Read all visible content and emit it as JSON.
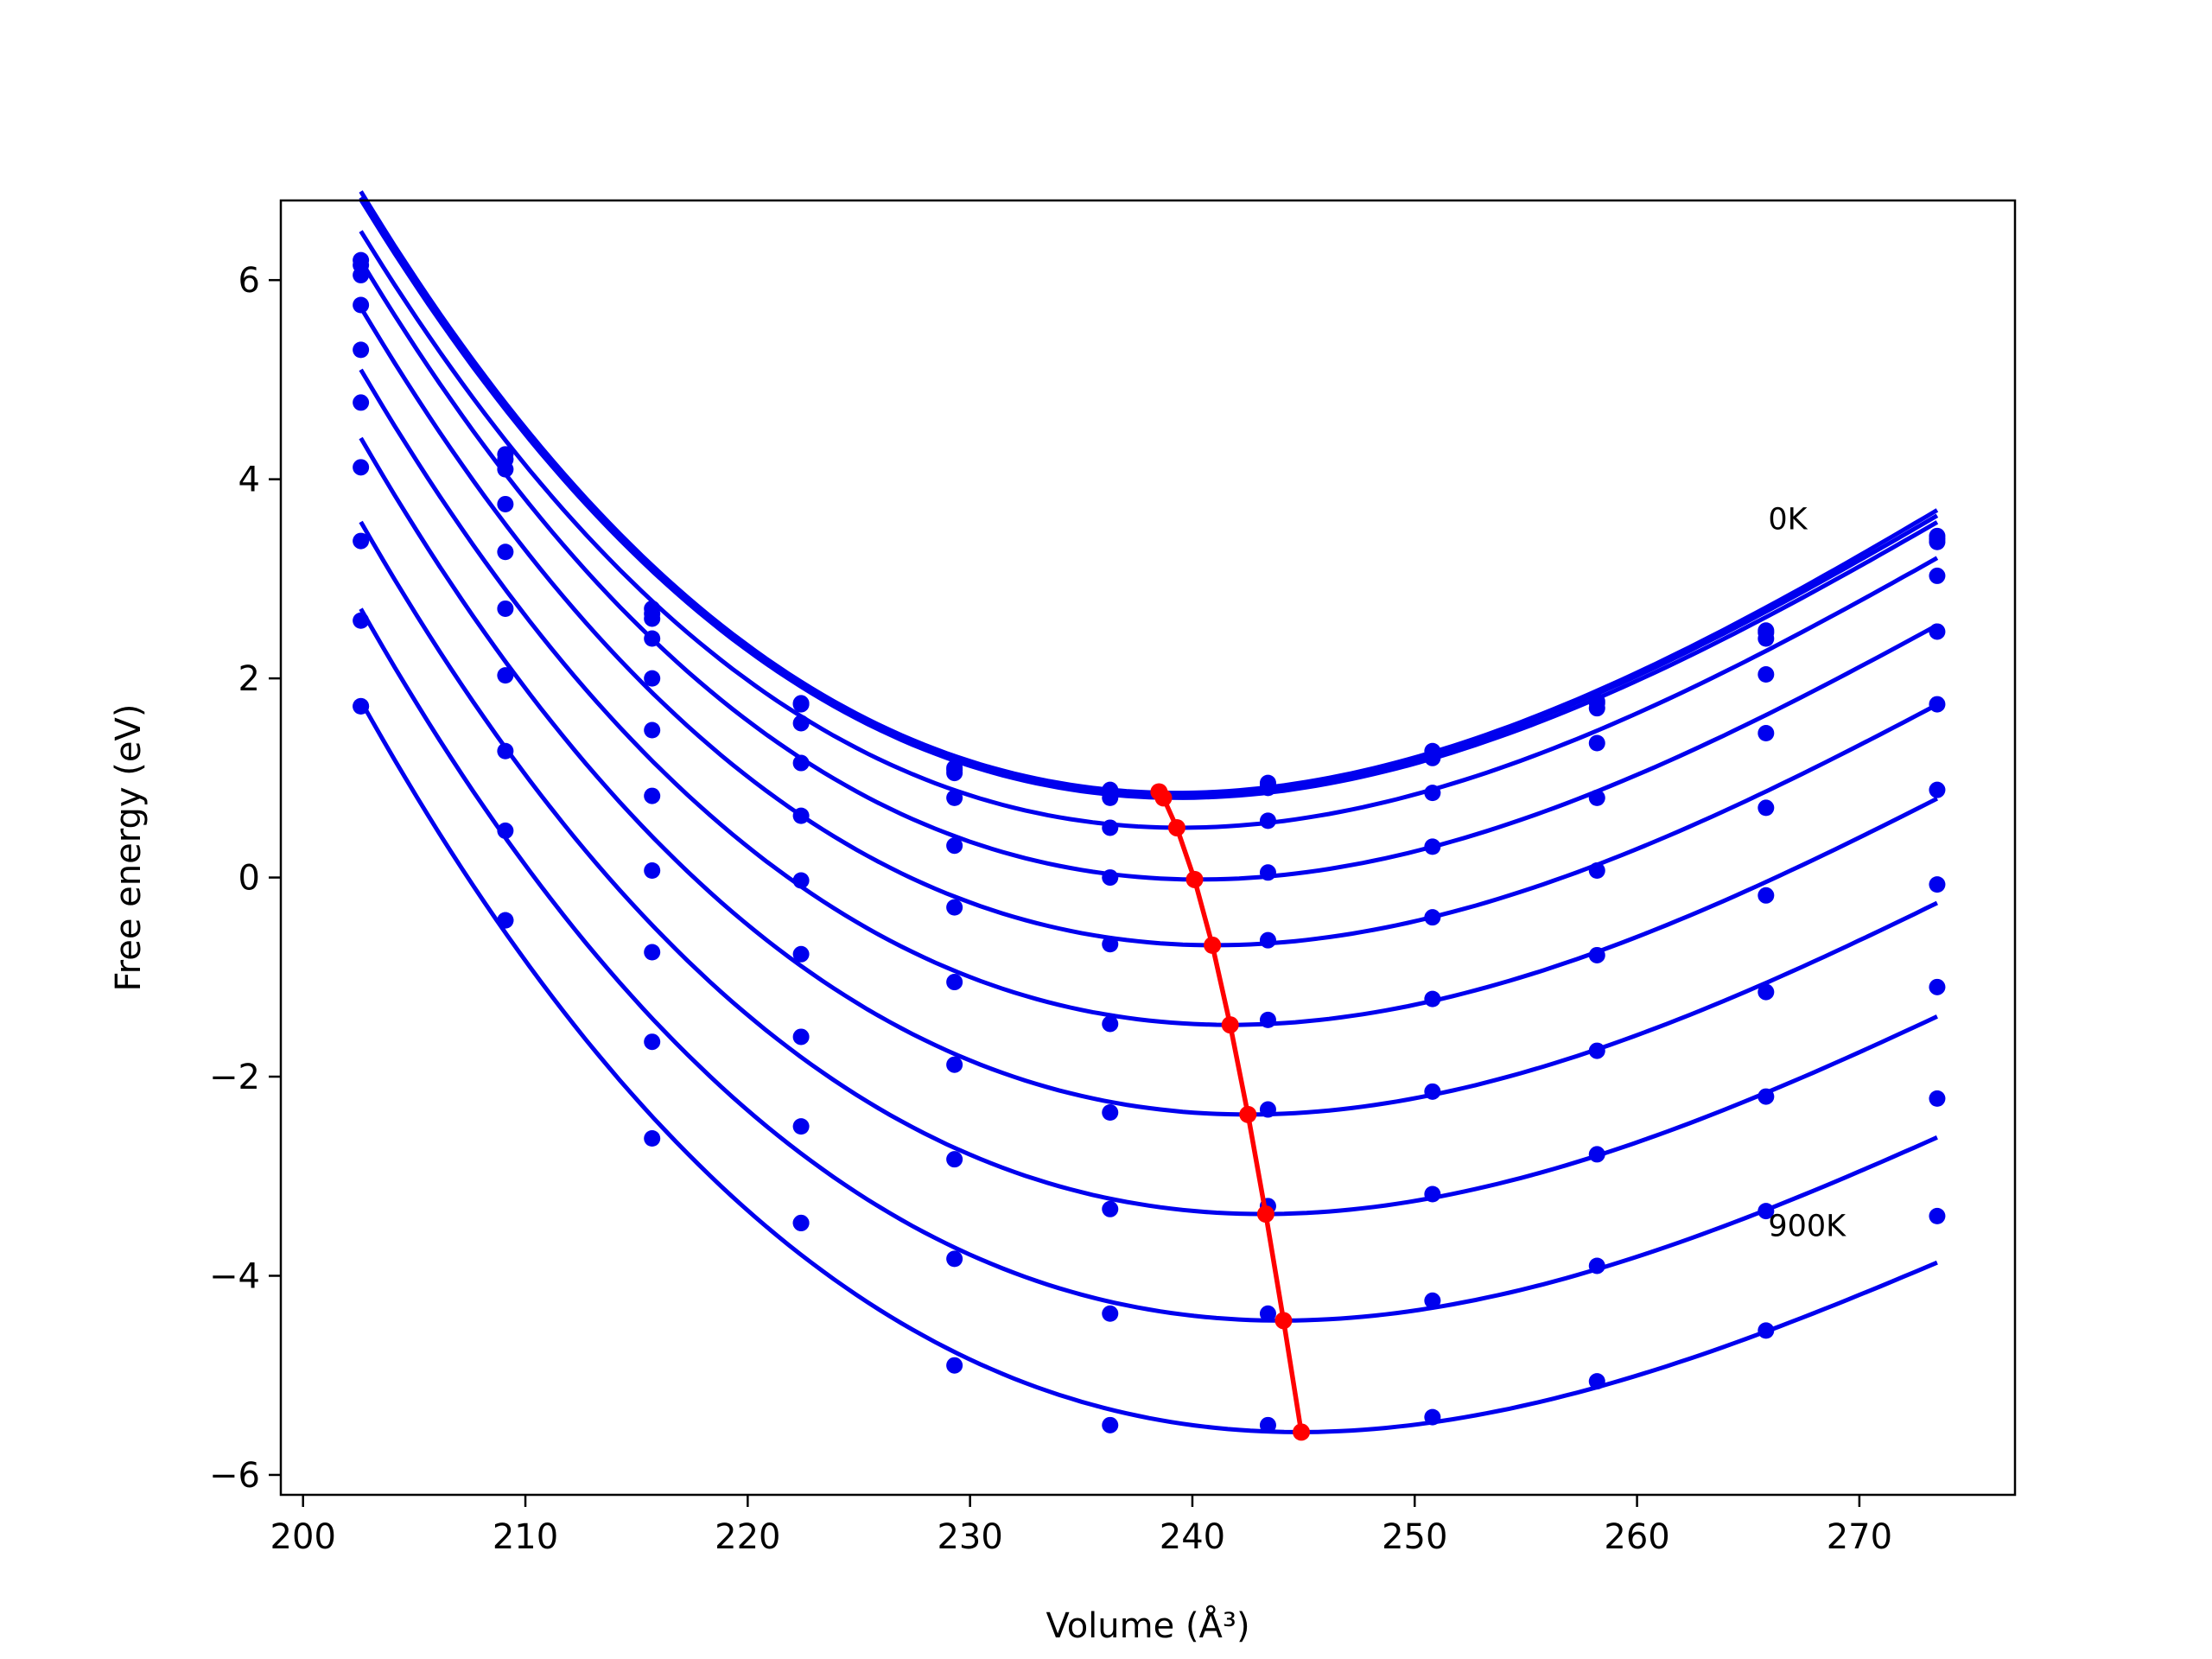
{
  "chart_data": {
    "type": "line",
    "xlabel": "Volume (Å³)",
    "ylabel": "Free energy (eV)",
    "xlim": [
      199,
      277
    ],
    "ylim": [
      -6.2,
      6.8
    ],
    "xticks": [
      200,
      210,
      220,
      230,
      240,
      250,
      260,
      270
    ],
    "yticks": [
      -6,
      -4,
      -2,
      0,
      2,
      4,
      6
    ],
    "ytick_labels": [
      "−6",
      "−4",
      "−2",
      "0",
      "2",
      "4",
      "6"
    ],
    "grid": false,
    "annotations": [
      {
        "text": "0K",
        "x": 265.9,
        "y": 3.5
      },
      {
        "text": "900K",
        "x": 265.9,
        "y": -3.6
      }
    ],
    "volumes": [
      202.6,
      209.1,
      215.7,
      222.4,
      229.3,
      236.3,
      243.4,
      250.8,
      258.2,
      265.8,
      273.5
    ],
    "curves": [
      {
        "fit": {
          "v0": 239.3,
          "e0": 0.85,
          "a": 0.00342,
          "c": -2.9e-05
        },
        "points": [
          6.2,
          4.25,
          2.7,
          1.75,
          1.1,
          0.88,
          0.95,
          1.27,
          1.77,
          2.48,
          3.43
        ]
      },
      {
        "fit": {
          "v0": 239.3,
          "e0": 0.83,
          "a": 0.00339,
          "c": -2.9e-05
        },
        "points": [
          6.15,
          4.2,
          2.65,
          1.74,
          1.08,
          0.86,
          0.93,
          1.25,
          1.75,
          2.46,
          3.4
        ]
      },
      {
        "fit": {
          "v0": 239.4,
          "e0": 0.8,
          "a": 0.00337,
          "c": -2.9e-05
        },
        "points": [
          6.05,
          4.1,
          2.6,
          1.55,
          1.05,
          0.8,
          0.9,
          1.2,
          1.7,
          2.4,
          3.37
        ]
      },
      {
        "fit": {
          "v0": 239.5,
          "e0": 0.5,
          "a": 0.00333,
          "c": -2.9e-05
        },
        "points": [
          5.75,
          3.75,
          2.4,
          1.15,
          0.8,
          0.5,
          0.57,
          0.85,
          1.35,
          2.04,
          3.03
        ]
      },
      {
        "fit": {
          "v0": 240.3,
          "e0": -0.02,
          "a": 0.00328,
          "c": -2.9e-05
        },
        "points": [
          5.3,
          3.27,
          2.0,
          0.62,
          0.32,
          0.0,
          0.05,
          0.31,
          0.8,
          1.45,
          2.47
        ]
      },
      {
        "fit": {
          "v0": 241.0,
          "e0": -0.68,
          "a": 0.00323,
          "c": -2.9e-05
        },
        "points": [
          4.77,
          2.7,
          1.48,
          -0.03,
          -0.3,
          -0.67,
          -0.63,
          -0.4,
          0.07,
          0.7,
          1.74
        ]
      },
      {
        "fit": {
          "v0": 241.7,
          "e0": -1.48,
          "a": 0.00317,
          "c": -2.9e-05
        },
        "points": [
          4.12,
          2.03,
          0.82,
          -0.77,
          -1.05,
          -1.47,
          -1.43,
          -1.22,
          -0.78,
          -0.18,
          0.88
        ]
      },
      {
        "fit": {
          "v0": 242.5,
          "e0": -2.38,
          "a": 0.00311,
          "c": -2.9e-05
        },
        "points": [
          3.38,
          1.27,
          0.07,
          -1.6,
          -1.88,
          -2.36,
          -2.33,
          -2.15,
          -1.74,
          -1.15,
          -0.07
        ]
      },
      {
        "fit": {
          "v0": 243.2,
          "e0": -3.38,
          "a": 0.00304,
          "c": -2.9e-05
        },
        "points": [
          2.58,
          0.47,
          -0.75,
          -2.5,
          -2.83,
          -3.33,
          -3.3,
          -3.18,
          -2.78,
          -2.2,
          -1.1
        ]
      },
      {
        "fit": {
          "v0": 244.0,
          "e0": -4.45,
          "a": 0.00297,
          "c": -2.9e-05
        },
        "points": [
          1.72,
          -0.43,
          -1.65,
          -3.47,
          -3.83,
          -4.38,
          -4.38,
          -4.25,
          -3.9,
          -3.35,
          -2.22
        ]
      },
      {
        "fit": {
          "v0": 244.8,
          "e0": -5.57,
          "a": 0.0029,
          "c": -2.9e-05
        },
        "points": [
          1.72,
          -0.43,
          -2.62,
          -3.47,
          -4.9,
          -5.5,
          -5.5,
          -5.42,
          -5.06,
          -4.55,
          -3.4
        ]
      }
    ],
    "minima": {
      "x": [
        238.5,
        238.7,
        239.3,
        240.1,
        240.9,
        241.7,
        242.5,
        243.3,
        244.1,
        244.9
      ],
      "y": [
        0.86,
        0.8,
        0.5,
        -0.02,
        -0.68,
        -1.48,
        -2.38,
        -3.38,
        -4.45,
        -5.57
      ]
    },
    "colors": {
      "curves": "#0000ee",
      "minima": "#ff0000"
    }
  }
}
